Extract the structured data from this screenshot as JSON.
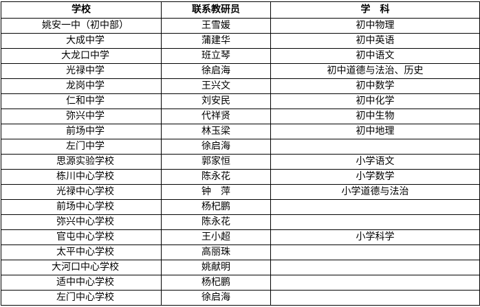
{
  "table": {
    "header": [
      "学校",
      "联系教研员",
      "学　科"
    ],
    "rows": [
      [
        "姚安一中（初中部）",
        "王雪媛",
        "初中物理"
      ],
      [
        "大成中学",
        "蒲建华",
        "初中英语"
      ],
      [
        "大龙口中学",
        "班立琴",
        "初中语文"
      ],
      [
        "光禄中学",
        "徐启海",
        "初中道德与法治、历史"
      ],
      [
        "龙岗中学",
        "王兴文",
        "初中数学"
      ],
      [
        "仁和中学",
        "刘安民",
        "初中化学"
      ],
      [
        "弥兴中学",
        "代祥贤",
        "初中生物"
      ],
      [
        "前场中学",
        "林玉梁",
        "初中地理"
      ],
      [
        "左门中学",
        "徐启海",
        null
      ],
      [
        "思源实验学校",
        "郭家恒",
        "小学语文"
      ],
      [
        "栋川中心学校",
        "陈永花",
        "小学数学"
      ],
      [
        "光禄中心学校",
        "钟　萍",
        "小学道德与法治"
      ],
      [
        "前场中心学校",
        "杨杞鹏",
        null
      ],
      [
        "弥兴中心学校",
        "陈永花",
        null
      ],
      [
        "官屯中心学校",
        "王小超",
        "小学科学"
      ],
      [
        "太平中心学校",
        "高丽珠",
        null
      ],
      [
        "大河口中心学校",
        "姚献明",
        null
      ],
      [
        "适中中心学校",
        "杨杞鹏",
        null
      ],
      [
        "左门中心学校",
        "徐启海",
        null
      ]
    ]
  }
}
